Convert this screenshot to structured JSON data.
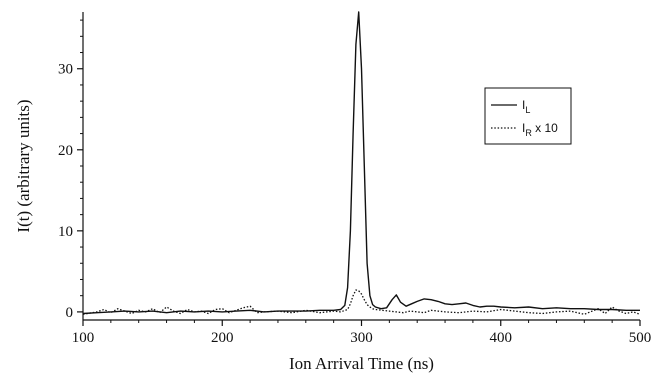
{
  "chart_data": {
    "type": "line",
    "xlabel": "Ion Arrival Time (ns)",
    "ylabel": "I(t) (arbitrary units)",
    "xlim": [
      100,
      500
    ],
    "ylim": [
      -1,
      37
    ],
    "xticks": [
      100,
      200,
      300,
      400,
      500
    ],
    "yticks": [
      0,
      10,
      20,
      30
    ],
    "grid": false,
    "legend_position": "top-right",
    "legend": [
      {
        "main": "I",
        "sub": "L",
        "suffix": "",
        "style": "solid"
      },
      {
        "main": "I",
        "sub": "R",
        "suffix": " x 10",
        "style": "dotted"
      }
    ],
    "series": [
      {
        "style": "solid",
        "x": [
          100,
          110,
          120,
          130,
          140,
          150,
          160,
          170,
          180,
          190,
          200,
          210,
          220,
          230,
          240,
          250,
          260,
          270,
          280,
          285,
          288,
          290,
          292,
          294,
          296,
          298,
          300,
          302,
          304,
          306,
          308,
          310,
          314,
          318,
          322,
          325,
          328,
          332,
          336,
          340,
          345,
          350,
          355,
          360,
          365,
          370,
          375,
          380,
          385,
          390,
          395,
          400,
          410,
          420,
          430,
          440,
          450,
          460,
          470,
          480,
          490,
          500
        ],
        "y": [
          -0.2,
          -0.1,
          0.0,
          0.1,
          0.0,
          0.1,
          -0.1,
          0.1,
          0.0,
          0.1,
          0.0,
          0.1,
          0.2,
          0.0,
          0.1,
          0.1,
          0.1,
          0.2,
          0.2,
          0.3,
          0.8,
          3.0,
          10.0,
          22.0,
          33.0,
          37.0,
          30.0,
          18.0,
          6.0,
          2.0,
          0.9,
          0.6,
          0.4,
          0.5,
          1.5,
          2.1,
          1.2,
          0.7,
          1.0,
          1.3,
          1.6,
          1.5,
          1.3,
          1.0,
          0.9,
          1.0,
          1.1,
          0.8,
          0.6,
          0.7,
          0.7,
          0.6,
          0.5,
          0.6,
          0.4,
          0.5,
          0.4,
          0.4,
          0.3,
          0.3,
          0.2,
          0.2
        ]
      },
      {
        "style": "dotted",
        "x": [
          100,
          110,
          115,
          120,
          125,
          130,
          135,
          140,
          145,
          150,
          155,
          160,
          165,
          170,
          175,
          180,
          185,
          190,
          195,
          200,
          205,
          210,
          215,
          220,
          225,
          230,
          240,
          250,
          260,
          270,
          280,
          285,
          290,
          292,
          294,
          296,
          298,
          300,
          302,
          304,
          306,
          308,
          310,
          315,
          320,
          325,
          330,
          335,
          340,
          345,
          350,
          355,
          360,
          370,
          380,
          390,
          400,
          410,
          420,
          430,
          440,
          450,
          460,
          470,
          475,
          480,
          485,
          490,
          495,
          500
        ],
        "y": [
          -0.3,
          0.0,
          0.3,
          -0.1,
          0.4,
          0.1,
          -0.2,
          0.2,
          0.0,
          0.4,
          -0.1,
          0.6,
          0.1,
          -0.2,
          0.3,
          0.0,
          0.1,
          -0.2,
          0.3,
          0.4,
          -0.1,
          0.2,
          0.5,
          0.7,
          -0.1,
          0.0,
          0.1,
          -0.1,
          0.2,
          -0.1,
          0.1,
          0.0,
          0.3,
          1.0,
          2.0,
          2.7,
          2.6,
          2.2,
          1.5,
          0.9,
          0.6,
          0.4,
          0.3,
          0.2,
          0.1,
          0.0,
          -0.1,
          0.1,
          0.0,
          -0.1,
          0.2,
          0.1,
          0.0,
          -0.1,
          0.1,
          0.0,
          0.3,
          0.1,
          -0.1,
          -0.2,
          0.0,
          0.1,
          -0.3,
          0.4,
          -0.2,
          0.6,
          0.1,
          -0.2,
          0.0,
          -0.3
        ]
      }
    ]
  }
}
